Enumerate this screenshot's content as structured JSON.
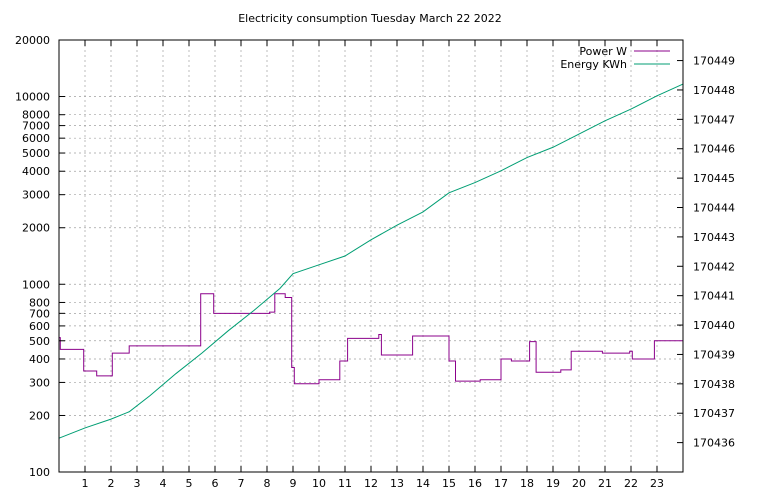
{
  "chart_data": {
    "type": "line",
    "title": "Electricity consumption Tuesday March 22 2022",
    "xlabel": "",
    "ylabel": "",
    "y2label": "",
    "grid": true,
    "legend_position": "top-right",
    "x_range": [
      0,
      24
    ],
    "x_ticks": [
      1,
      2,
      3,
      4,
      5,
      6,
      7,
      8,
      9,
      10,
      11,
      12,
      13,
      14,
      15,
      16,
      17,
      18,
      19,
      20,
      21,
      22,
      23
    ],
    "y_axis": {
      "scale": "log",
      "range": [
        100,
        20000
      ],
      "ticks": [
        100,
        200,
        300,
        400,
        500,
        600,
        700,
        800,
        1000,
        2000,
        3000,
        4000,
        5000,
        6000,
        7000,
        8000,
        10000,
        20000
      ]
    },
    "y2_axis": {
      "scale": "linear",
      "range": [
        170435.0,
        170449.7
      ],
      "ticks": [
        170436,
        170437,
        170438,
        170439,
        170440,
        170441,
        170442,
        170443,
        170444,
        170445,
        170446,
        170447,
        170448,
        170449
      ]
    },
    "series": [
      {
        "name": "Power W",
        "axis": "y",
        "color": "#8b008b",
        "style": "step",
        "x": [
          0,
          0.05,
          0.95,
          1.45,
          2.05,
          2.7,
          5.45,
          5.95,
          8.1,
          8.3,
          8.7,
          8.95,
          9.05,
          10.0,
          10.8,
          11.1,
          12.3,
          12.4,
          13.2,
          13.6,
          15.0,
          15.25,
          16.2,
          17.0,
          17.4,
          18.1,
          18.35,
          19.3,
          19.7,
          20.9,
          21.95,
          22.05,
          22.9,
          24.0
        ],
        "y": [
          520,
          450,
          345,
          325,
          430,
          470,
          890,
          700,
          710,
          890,
          850,
          360,
          295,
          310,
          390,
          515,
          540,
          420,
          420,
          530,
          390,
          305,
          310,
          400,
          390,
          495,
          340,
          350,
          440,
          430,
          440,
          400,
          500,
          480
        ]
      },
      {
        "name": "Energy KWh",
        "axis": "y2",
        "color": "#009e73",
        "style": "line",
        "x": [
          0,
          1,
          2,
          2.7,
          3.5,
          4.5,
          5.5,
          6.5,
          7.5,
          8.5,
          9.0,
          10.0,
          11.0,
          12.0,
          13.0,
          14.0,
          15.0,
          16.0,
          17.0,
          18.0,
          19.0,
          20.0,
          21.0,
          22.0,
          23.0,
          24.0
        ],
        "y": [
          170436.15,
          170436.5,
          170436.8,
          170437.05,
          170437.6,
          170438.35,
          170439.05,
          170439.8,
          170440.5,
          170441.25,
          170441.75,
          170442.05,
          170442.35,
          170442.9,
          170443.4,
          170443.85,
          170444.5,
          170444.85,
          170445.25,
          170445.7,
          170446.05,
          170446.5,
          170446.95,
          170447.35,
          170447.8,
          170448.2
        ]
      }
    ]
  }
}
